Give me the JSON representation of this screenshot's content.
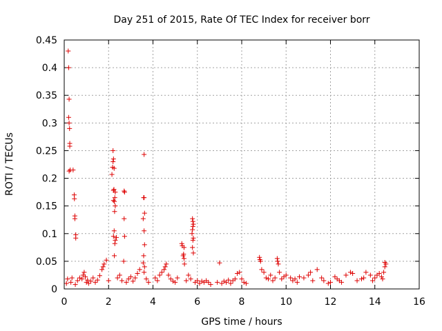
{
  "chart_data": {
    "type": "scatter",
    "title": "Day 251 of 2015, Rate Of TEC Index for receiver borr",
    "xlabel": "GPS time / hours",
    "ylabel": "ROTI / TECUs",
    "xlim": [
      0,
      16
    ],
    "ylim": [
      0,
      0.45
    ],
    "xticks": [
      0,
      2,
      4,
      6,
      8,
      10,
      12,
      14,
      16
    ],
    "yticks": [
      0,
      0.05,
      0.1,
      0.15,
      0.2,
      0.25,
      0.3,
      0.35,
      0.4,
      0.45
    ],
    "grid": true,
    "marker": "+",
    "color": "#dd0000",
    "series": [
      {
        "name": "ROTI",
        "x": [
          0.18,
          0.2,
          0.22,
          0.2,
          0.22,
          0.24,
          0.25,
          0.25,
          0.27,
          0.22,
          0.4,
          0.45,
          0.46,
          0.48,
          0.48,
          0.52,
          0.52,
          2.15,
          2.18,
          2.2,
          2.22,
          2.2,
          2.25,
          2.24,
          2.22,
          2.3,
          2.28,
          2.26,
          2.22,
          2.3,
          2.27,
          2.25,
          2.22,
          2.35,
          2.3,
          2.28,
          2.26,
          2.7,
          2.72,
          2.7,
          2.72,
          2.68,
          3.6,
          3.58,
          3.6,
          3.62,
          3.56,
          3.6,
          3.62,
          3.58,
          3.56,
          3.62,
          3.6,
          5.3,
          5.32,
          5.4,
          5.38,
          5.36,
          5.4,
          5.42,
          5.78,
          5.8,
          5.82,
          5.8,
          5.78,
          5.76,
          5.82,
          5.8,
          5.78,
          5.82,
          7.0,
          8.8,
          8.82,
          8.85,
          9.6,
          9.62,
          9.65,
          0.1,
          0.15,
          0.3,
          0.35,
          0.5,
          0.6,
          0.7,
          0.8,
          0.85,
          0.9,
          0.95,
          1.0,
          1.05,
          1.1,
          1.2,
          1.3,
          1.4,
          1.5,
          1.6,
          1.7,
          1.75,
          1.8,
          1.9,
          2.0,
          2.4,
          2.5,
          2.6,
          2.8,
          2.9,
          3.0,
          3.1,
          3.2,
          3.3,
          3.4,
          3.7,
          3.8,
          4.1,
          4.2,
          4.3,
          4.4,
          4.5,
          4.55,
          4.6,
          4.7,
          4.8,
          4.9,
          5.0,
          5.1,
          5.5,
          5.6,
          5.7,
          5.9,
          6.0,
          6.1,
          6.2,
          6.3,
          6.4,
          6.5,
          6.6,
          6.9,
          7.1,
          7.2,
          7.3,
          7.4,
          7.5,
          7.6,
          7.7,
          7.8,
          7.9,
          8.0,
          8.1,
          8.2,
          8.9,
          9.0,
          9.1,
          9.2,
          9.3,
          9.4,
          9.5,
          9.7,
          9.8,
          9.9,
          10.0,
          10.2,
          10.3,
          10.4,
          10.5,
          10.6,
          10.8,
          11.0,
          11.1,
          11.2,
          11.4,
          11.6,
          11.7,
          11.9,
          12.0,
          12.2,
          12.3,
          12.4,
          12.5,
          12.7,
          12.9,
          13.0,
          13.2,
          13.4,
          13.5,
          13.6,
          13.8,
          13.9,
          14.0,
          14.1,
          14.2,
          14.3,
          14.35,
          14.4,
          14.45,
          14.5,
          14.45
        ],
        "y": [
          0.43,
          0.4,
          0.343,
          0.31,
          0.3,
          0.29,
          0.263,
          0.258,
          0.215,
          0.213,
          0.215,
          0.17,
          0.163,
          0.132,
          0.127,
          0.098,
          0.092,
          0.207,
          0.22,
          0.25,
          0.235,
          0.23,
          0.218,
          0.18,
          0.178,
          0.175,
          0.165,
          0.158,
          0.16,
          0.15,
          0.14,
          0.105,
          0.095,
          0.093,
          0.088,
          0.082,
          0.06,
          0.177,
          0.175,
          0.127,
          0.095,
          0.05,
          0.243,
          0.165,
          0.165,
          0.137,
          0.127,
          0.105,
          0.08,
          0.06,
          0.047,
          0.04,
          0.03,
          0.082,
          0.078,
          0.075,
          0.063,
          0.06,
          0.055,
          0.045,
          0.127,
          0.122,
          0.117,
          0.113,
          0.107,
          0.1,
          0.092,
          0.088,
          0.075,
          0.065,
          0.047,
          0.057,
          0.053,
          0.05,
          0.055,
          0.05,
          0.045,
          0.01,
          0.018,
          0.012,
          0.02,
          0.008,
          0.015,
          0.02,
          0.018,
          0.025,
          0.03,
          0.022,
          0.012,
          0.016,
          0.01,
          0.014,
          0.02,
          0.012,
          0.016,
          0.024,
          0.035,
          0.04,
          0.045,
          0.052,
          0.015,
          0.02,
          0.025,
          0.015,
          0.012,
          0.018,
          0.022,
          0.014,
          0.02,
          0.028,
          0.035,
          0.018,
          0.012,
          0.02,
          0.015,
          0.025,
          0.03,
          0.035,
          0.04,
          0.045,
          0.025,
          0.018,
          0.014,
          0.012,
          0.02,
          0.015,
          0.025,
          0.018,
          0.012,
          0.015,
          0.01,
          0.014,
          0.012,
          0.015,
          0.012,
          0.008,
          0.012,
          0.01,
          0.014,
          0.012,
          0.016,
          0.01,
          0.015,
          0.018,
          0.028,
          0.03,
          0.018,
          0.012,
          0.01,
          0.035,
          0.03,
          0.02,
          0.018,
          0.025,
          0.015,
          0.02,
          0.03,
          0.018,
          0.022,
          0.025,
          0.02,
          0.015,
          0.018,
          0.012,
          0.022,
          0.02,
          0.025,
          0.03,
          0.015,
          0.035,
          0.02,
          0.015,
          0.01,
          0.012,
          0.022,
          0.018,
          0.015,
          0.012,
          0.025,
          0.03,
          0.028,
          0.015,
          0.018,
          0.02,
          0.03,
          0.025,
          0.015,
          0.02,
          0.025,
          0.028,
          0.022,
          0.018,
          0.03,
          0.04,
          0.045,
          0.048
        ]
      }
    ]
  }
}
